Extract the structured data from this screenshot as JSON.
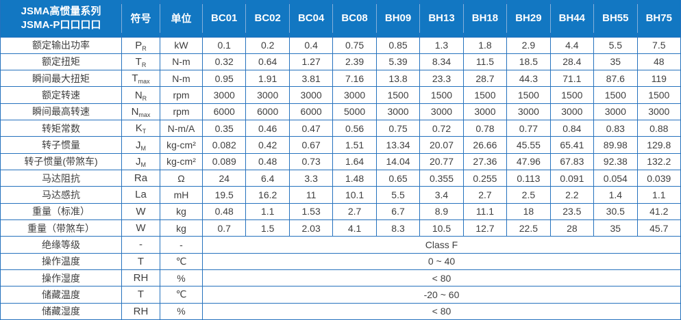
{
  "colors": {
    "header_bg": "#1277C2",
    "border": "#2471BD",
    "body_text": "#3E3E3E",
    "header_text": "#FFFFFF"
  },
  "table": {
    "header": {
      "title_line1": "JSMA高惯量系列",
      "title_line2": "JSMA-P口口口口",
      "symbol_label": "符号",
      "unit_label": "单位",
      "models": [
        "BC01",
        "BC02",
        "BC04",
        "BC08",
        "BH09",
        "BH13",
        "BH18",
        "BH29",
        "BH44",
        "BH55",
        "BH75"
      ]
    },
    "rows": [
      {
        "label": "额定输出功率",
        "symbol": "P",
        "symbol_sub": "R",
        "unit": "kW",
        "values": [
          "0.1",
          "0.2",
          "0.4",
          "0.75",
          "0.85",
          "1.3",
          "1.8",
          "2.9",
          "4.4",
          "5.5",
          "7.5"
        ]
      },
      {
        "label": "额定扭矩",
        "symbol": "T",
        "symbol_sub": "R",
        "unit": "N-m",
        "values": [
          "0.32",
          "0.64",
          "1.27",
          "2.39",
          "5.39",
          "8.34",
          "11.5",
          "18.5",
          "28.4",
          "35",
          "48"
        ]
      },
      {
        "label": "瞬间最大扭矩",
        "symbol": "T",
        "symbol_sub": "max",
        "unit": "N-m",
        "values": [
          "0.95",
          "1.91",
          "3.81",
          "7.16",
          "13.8",
          "23.3",
          "28.7",
          "44.3",
          "71.1",
          "87.6",
          "119"
        ]
      },
      {
        "label": "额定转速",
        "symbol": "N",
        "symbol_sub": "R",
        "unit": "rpm",
        "values": [
          "3000",
          "3000",
          "3000",
          "3000",
          "1500",
          "1500",
          "1500",
          "1500",
          "1500",
          "1500",
          "1500"
        ]
      },
      {
        "label": "瞬间最高转速",
        "symbol": "N",
        "symbol_sub": "max",
        "unit": "rpm",
        "values": [
          "6000",
          "6000",
          "6000",
          "5000",
          "3000",
          "3000",
          "3000",
          "3000",
          "3000",
          "3000",
          "3000"
        ]
      },
      {
        "label": "转矩常数",
        "symbol": "K",
        "symbol_sub": "T",
        "unit": "N-m/A",
        "values": [
          "0.35",
          "0.46",
          "0.47",
          "0.56",
          "0.75",
          "0.72",
          "0.78",
          "0.77",
          "0.84",
          "0.83",
          "0.88"
        ]
      },
      {
        "label": "转子惯量",
        "symbol": "J",
        "symbol_sub": "M",
        "unit": "kg-cm²",
        "values": [
          "0.082",
          "0.42",
          "0.67",
          "1.51",
          "13.34",
          "20.07",
          "26.66",
          "45.55",
          "65.41",
          "89.98",
          "129.8"
        ]
      },
      {
        "label": "转子惯量(带煞车)",
        "symbol": "J",
        "symbol_sub": "M",
        "unit": "kg-cm²",
        "values": [
          "0.089",
          "0.48",
          "0.73",
          "1.64",
          "14.04",
          "20.77",
          "27.36",
          "47.96",
          "67.83",
          "92.38",
          "132.2"
        ]
      },
      {
        "label": "马达阻抗",
        "symbol": "Ra",
        "symbol_sub": "",
        "unit": "Ω",
        "values": [
          "24",
          "6.4",
          "3.3",
          "1.48",
          "0.65",
          "0.355",
          "0.255",
          "0.113",
          "0.091",
          "0.054",
          "0.039"
        ]
      },
      {
        "label": "马达感抗",
        "symbol": "La",
        "symbol_sub": "",
        "unit": "mH",
        "values": [
          "19.5",
          "16.2",
          "11",
          "10.1",
          "5.5",
          "3.4",
          "2.7",
          "2.5",
          "2.2",
          "1.4",
          "1.1"
        ]
      },
      {
        "label": "重量（标准）",
        "symbol": "W",
        "symbol_sub": "",
        "unit": "kg",
        "values": [
          "0.48",
          "1.1",
          "1.53",
          "2.7",
          "6.7",
          "8.9",
          "11.1",
          "18",
          "23.5",
          "30.5",
          "41.2"
        ]
      },
      {
        "label": "重量（带煞车）",
        "symbol": "W",
        "symbol_sub": "",
        "unit": "kg",
        "values": [
          "0.7",
          "1.5",
          "2.03",
          "4.1",
          "8.3",
          "10.5",
          "12.7",
          "22.5",
          "28",
          "35",
          "45.7"
        ]
      },
      {
        "label": "绝缘等级",
        "symbol": "-",
        "symbol_sub": "",
        "unit": "-",
        "merged_value": "Class F"
      },
      {
        "label": "操作温度",
        "symbol": "T",
        "symbol_sub": "",
        "unit": "℃",
        "merged_value": "0 ~ 40"
      },
      {
        "label": "操作湿度",
        "symbol": "RH",
        "symbol_sub": "",
        "unit": "%",
        "merged_value": "< 80"
      },
      {
        "label": "储藏温度",
        "symbol": "T",
        "symbol_sub": "",
        "unit": "℃",
        "merged_value": "-20 ~ 60"
      },
      {
        "label": "储藏湿度",
        "symbol": "RH",
        "symbol_sub": "",
        "unit": "%",
        "merged_value": "< 80"
      }
    ]
  }
}
